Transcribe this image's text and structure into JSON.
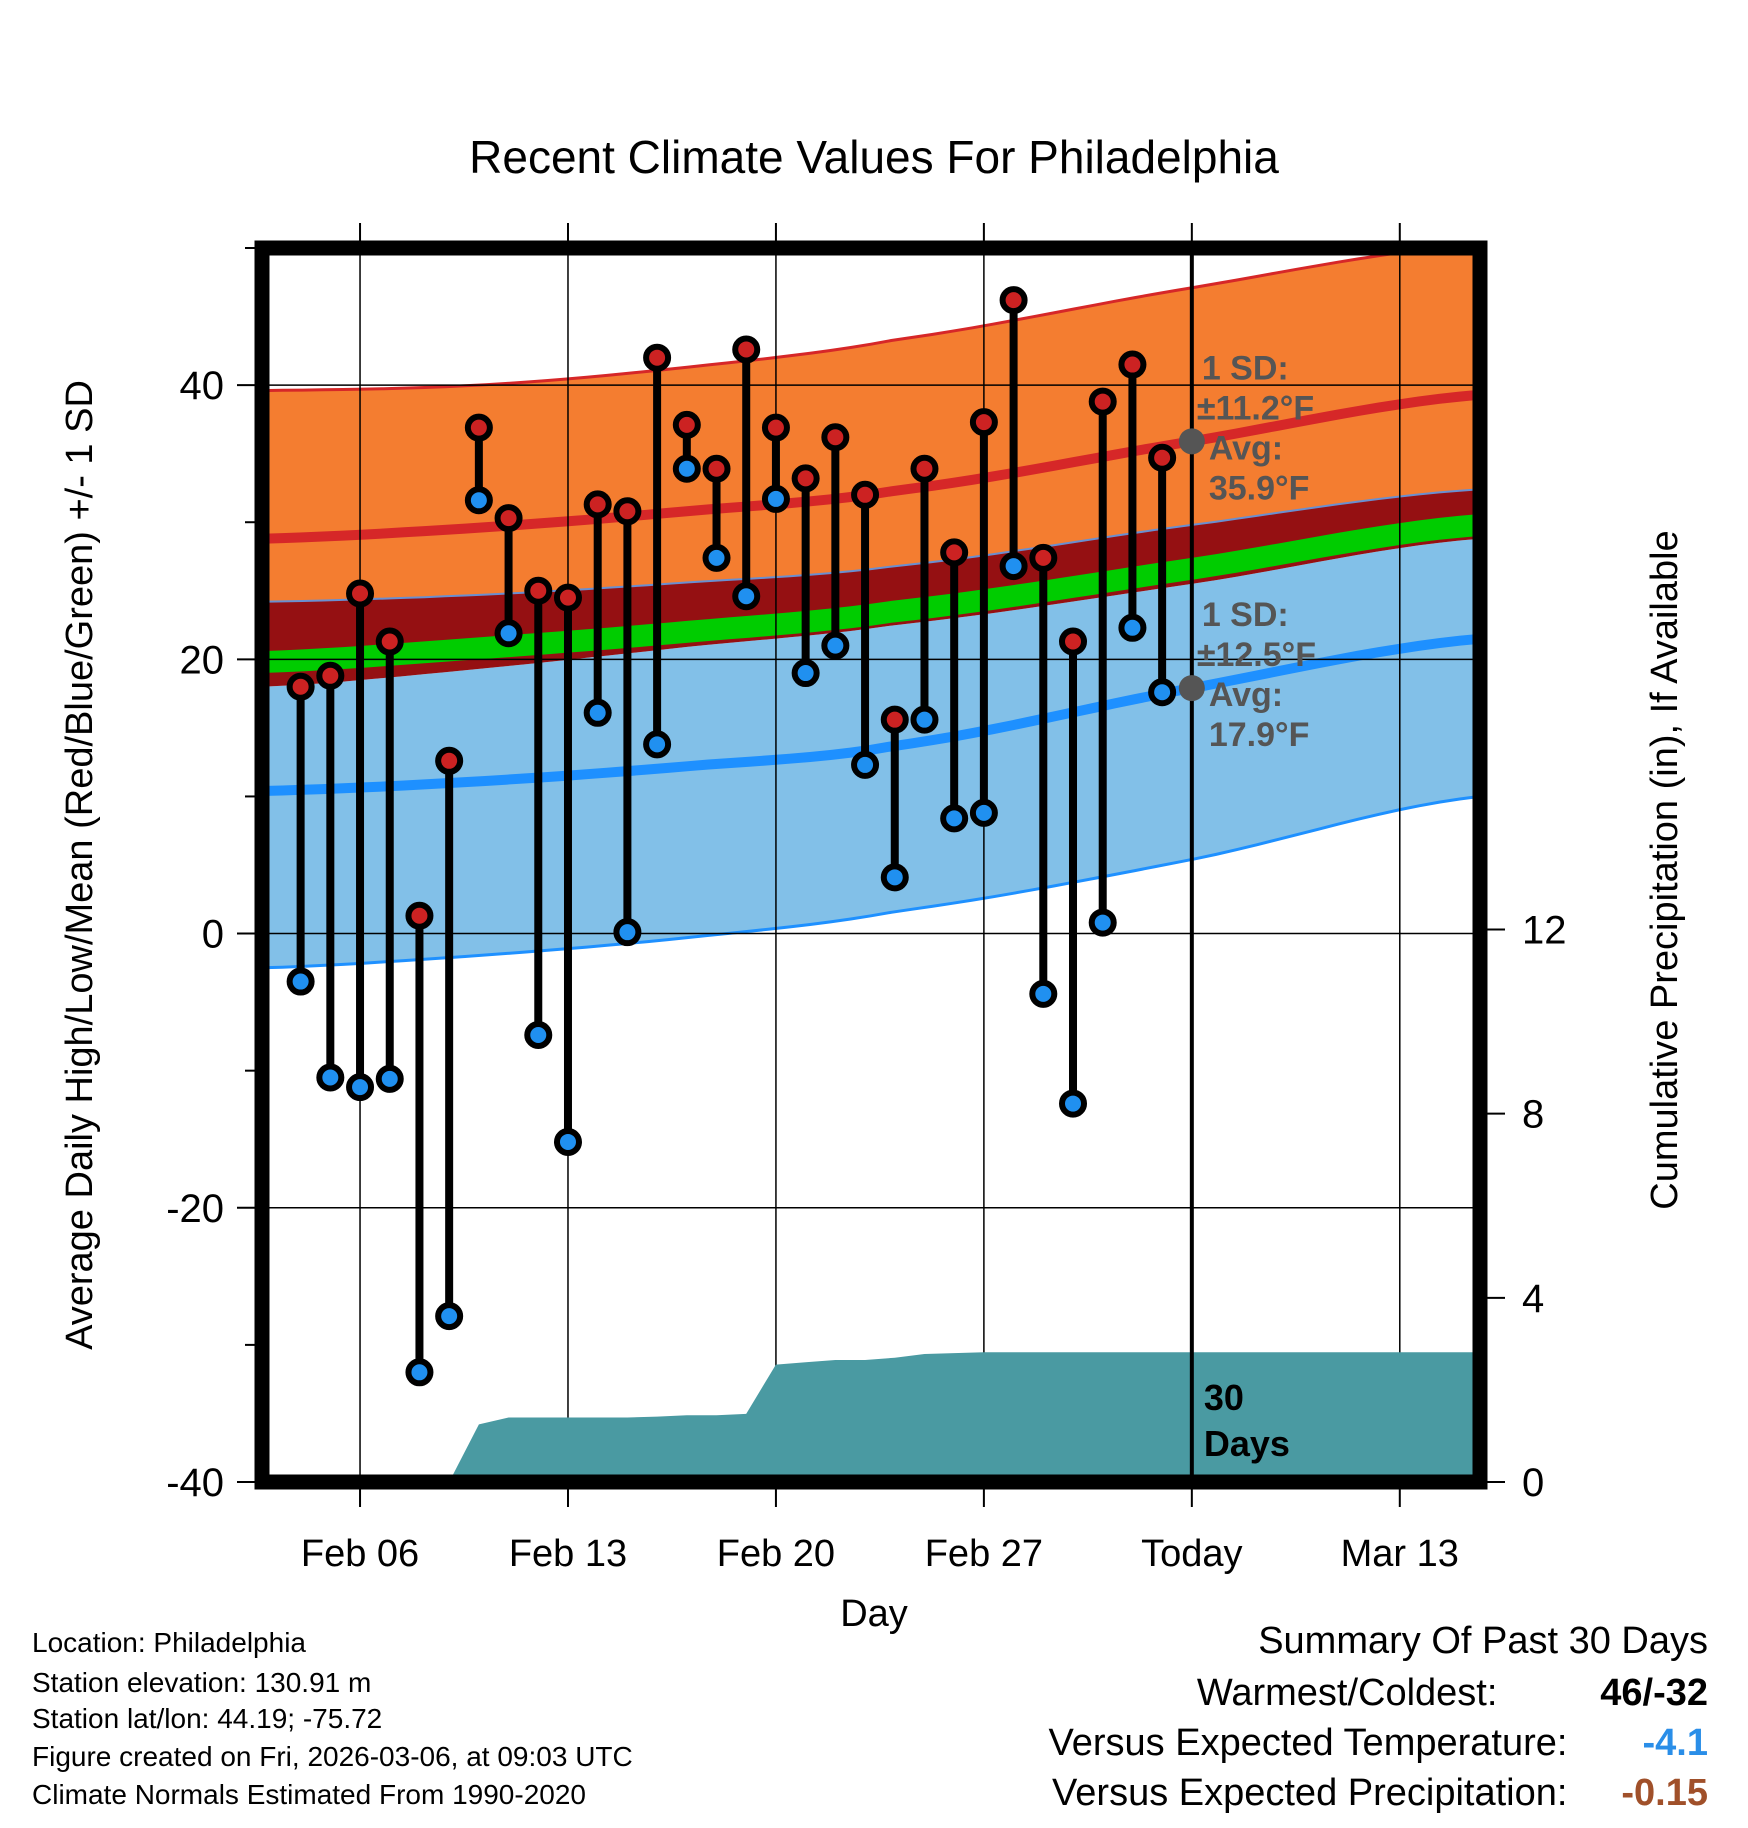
{
  "chart_data": {
    "type": "line",
    "title": "Recent Climate Values For Philadelphia",
    "xlabel": "Day",
    "ylabel": "Average Daily High/Low/Mean (Red/Blue/Green) +/- 1 SD",
    "y2label": "Cumulative Precipitation (in), If Available",
    "ylim": [
      -40,
      50
    ],
    "y_ticks": [
      -40,
      -20,
      0,
      20,
      40
    ],
    "y2lim": [
      0,
      26.8
    ],
    "y2_ticks": [
      0,
      4,
      8,
      12
    ],
    "xlim": [
      -28.3,
      12.7
    ],
    "x_ticks": [
      {
        "day": -25,
        "label": "Feb 06"
      },
      {
        "day": -18,
        "label": "Feb 13"
      },
      {
        "day": -11,
        "label": "Feb 20"
      },
      {
        "day": -4,
        "label": "Feb 27"
      },
      {
        "day": 3,
        "label": "Today"
      },
      {
        "day": 10,
        "label": "Mar 13"
      }
    ],
    "today_day": 3,
    "period_label": "30\nDays",
    "daily": [
      {
        "day": -27,
        "high": 18,
        "low": -3.5
      },
      {
        "day": -26,
        "high": 18.8,
        "low": -10.5
      },
      {
        "day": -25,
        "high": 24.8,
        "low": -11.2
      },
      {
        "day": -24,
        "high": 21.3,
        "low": -10.6
      },
      {
        "day": -23,
        "high": 1.3,
        "low": -32
      },
      {
        "day": -22,
        "high": 12.6,
        "low": -27.9
      },
      {
        "day": -21,
        "high": 36.9,
        "low": 31.6
      },
      {
        "day": -20,
        "high": 30.3,
        "low": 21.9
      },
      {
        "day": -19,
        "high": 25,
        "low": -7.4
      },
      {
        "day": -18,
        "high": 24.5,
        "low": -15.2
      },
      {
        "day": -17,
        "high": 31.3,
        "low": 16.1
      },
      {
        "day": -16,
        "high": 30.8,
        "low": 0.1
      },
      {
        "day": -15,
        "high": 42,
        "low": 13.8
      },
      {
        "day": -14,
        "high": 37.1,
        "low": 33.9
      },
      {
        "day": -13,
        "high": 33.9,
        "low": 27.4
      },
      {
        "day": -12,
        "high": 42.6,
        "low": 24.6
      },
      {
        "day": -11,
        "high": 36.9,
        "low": 31.7
      },
      {
        "day": -10,
        "high": 33.2,
        "low": 19
      },
      {
        "day": -9,
        "high": 36.2,
        "low": 21
      },
      {
        "day": -8,
        "high": 32,
        "low": 12.3
      },
      {
        "day": -7,
        "high": 15.6,
        "low": 4.1
      },
      {
        "day": -6,
        "high": 33.9,
        "low": 15.6
      },
      {
        "day": -5,
        "high": 27.8,
        "low": 8.4
      },
      {
        "day": -4,
        "high": 37.3,
        "low": 8.8
      },
      {
        "day": -3,
        "high": 46.2,
        "low": 26.8
      },
      {
        "day": -2,
        "high": 27.4,
        "low": -4.4
      },
      {
        "day": -1,
        "high": 21.3,
        "low": -12.4
      },
      {
        "day": 0,
        "high": 38.8,
        "low": 0.8
      },
      {
        "day": 1,
        "high": 41.5,
        "low": 22.3
      },
      {
        "day": 2,
        "high": 34.7,
        "low": 17.6
      }
    ],
    "normals": {
      "days": [
        -28.3,
        -21,
        -14,
        -7,
        3,
        12.7
      ],
      "high_mean": [
        28.8,
        29.6,
        30.8,
        32.3,
        35.9,
        39.3
      ],
      "high_plus_sd": [
        39.6,
        40.0,
        41.3,
        43.3,
        47.1,
        50.3
      ],
      "high_minus_sd": [
        24.2,
        24.7,
        25.6,
        26.8,
        29.8,
        32.4
      ],
      "mean_upper": [
        20.6,
        21.6,
        22.8,
        24.3,
        27.4,
        30.6
      ],
      "mean_lower": [
        19.0,
        20.0,
        21.2,
        22.7,
        25.8,
        29.0
      ],
      "low_plus_sd": [
        18.0,
        19.3,
        20.9,
        22.5,
        25.5,
        28.8
      ],
      "low_mean": [
        10.4,
        11.1,
        12.2,
        13.7,
        17.9,
        21.5
      ],
      "low_minus_sd": [
        -2.5,
        -1.6,
        -0.3,
        1.6,
        5.4,
        10.0
      ]
    },
    "precipitation": {
      "days": [
        -22,
        -21,
        -20,
        -19,
        -18,
        -17,
        -16,
        -15,
        -14,
        -13,
        -12,
        -11,
        -10,
        -9,
        -8,
        -7,
        -6,
        -5,
        -4,
        -3,
        -2,
        -1,
        0,
        1,
        2,
        3,
        12.7
      ],
      "cumulative": [
        0,
        1.25,
        1.4,
        1.4,
        1.4,
        1.4,
        1.4,
        1.42,
        1.45,
        1.45,
        1.48,
        2.55,
        2.6,
        2.65,
        2.65,
        2.7,
        2.78,
        2.8,
        2.82,
        2.82,
        2.82,
        2.82,
        2.82,
        2.82,
        2.82,
        2.82,
        2.82
      ]
    },
    "annotations": {
      "high_sd_label": "1 SD:",
      "high_sd_value": "±11.2°F",
      "high_avg_label": "Avg:",
      "high_avg_value": "35.9°F",
      "low_sd_label": "1 SD:",
      "low_sd_value": "±12.5°F",
      "low_avg_label": "Avg:",
      "low_avg_value": "17.9°F"
    },
    "colors": {
      "high_band": "#f47d30",
      "high_line": "#d62728",
      "high_minus_band": "#951012",
      "mean_band": "#00cc00",
      "low_band": "#82c0e8",
      "low_line": "#1e90ff",
      "precip": "#4a9aa2",
      "high_marker": "#cc2222",
      "low_marker": "#2090f0",
      "annotation": "#555555"
    }
  },
  "info": {
    "location": "Location: Philadelphia",
    "elevation": "Station elevation: 130.91 m",
    "latlon": "Station lat/lon: 44.19; -75.72",
    "created": "Figure created on Fri, 2026-03-06, at 09:03 UTC",
    "normals": "Climate Normals Estimated From 1990-2020"
  },
  "summary": {
    "title": "Summary Of Past 30 Days",
    "warm_cold_label": "Warmest/Coldest:",
    "warm_cold_value": "46/-32",
    "temp_label": "Versus Expected Temperature:",
    "temp_value": "-4.1",
    "temp_color": "#2a8ee8",
    "precip_label": "Versus Expected Precipitation:",
    "precip_value": "-0.15",
    "precip_color": "#a0502a"
  }
}
